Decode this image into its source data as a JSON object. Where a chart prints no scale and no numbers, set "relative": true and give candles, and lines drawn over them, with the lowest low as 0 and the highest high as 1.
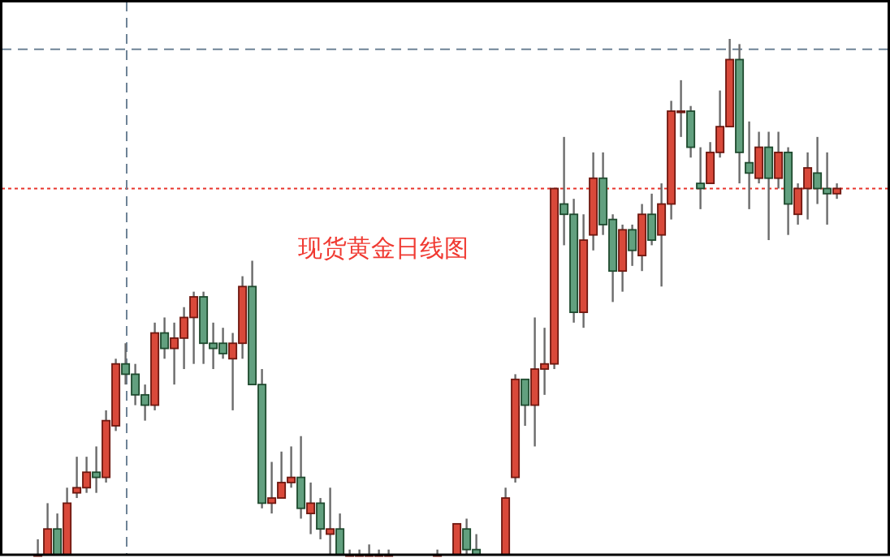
{
  "chart_data": {
    "type": "candlestick",
    "title": "现货黄金日线图",
    "relative": true,
    "categories": [
      null,
      null,
      null,
      null,
      null,
      null,
      null,
      null,
      null,
      null,
      null,
      null,
      null,
      null,
      null,
      null,
      null,
      null,
      null,
      null,
      null,
      null,
      null,
      null,
      null,
      null,
      null,
      null,
      null,
      null,
      null,
      null,
      null,
      null,
      null,
      null,
      null,
      null,
      null,
      null,
      null,
      null,
      null,
      null,
      null,
      null,
      null,
      null,
      null,
      null,
      null,
      null,
      null,
      null,
      null,
      null,
      null,
      null,
      null,
      null,
      null,
      null,
      null,
      null,
      null,
      null,
      null,
      null,
      null,
      null,
      null,
      null,
      null,
      null,
      null,
      null,
      null,
      null,
      null,
      null,
      null,
      null,
      null
    ],
    "ohlc": [
      [
        0,
        0.03,
        0,
        0
      ],
      [
        0,
        0.1,
        0,
        0.05
      ],
      [
        0.05,
        0.08,
        0,
        0
      ],
      [
        0,
        0.13,
        0,
        0.1
      ],
      [
        0.12,
        0.19,
        0.11,
        0.13
      ],
      [
        0.13,
        0.19,
        0.12,
        0.16
      ],
      [
        0.16,
        0.21,
        0.12,
        0.15
      ],
      [
        0.15,
        0.28,
        0.14,
        0.26
      ],
      [
        0.25,
        0.38,
        0.24,
        0.37
      ],
      [
        0.37,
        0.41,
        0.33,
        0.35
      ],
      [
        0.35,
        0.37,
        0.29,
        0.31
      ],
      [
        0.31,
        0.33,
        0.26,
        0.29
      ],
      [
        0.29,
        0.45,
        0.28,
        0.43
      ],
      [
        0.43,
        0.46,
        0.38,
        0.4
      ],
      [
        0.4,
        0.45,
        0.33,
        0.42
      ],
      [
        0.42,
        0.48,
        0.36,
        0.46
      ],
      [
        0.46,
        0.51,
        0.37,
        0.5
      ],
      [
        0.5,
        0.51,
        0.37,
        0.41
      ],
      [
        0.41,
        0.45,
        0.36,
        0.4
      ],
      [
        0.41,
        0.44,
        0.38,
        0.39
      ],
      [
        0.38,
        0.43,
        0.28,
        0.41
      ],
      [
        0.41,
        0.54,
        0.38,
        0.52
      ],
      [
        0.52,
        0.57,
        0.33,
        0.33
      ],
      [
        0.33,
        0.36,
        0.09,
        0.1
      ],
      [
        0.1,
        0.18,
        0.08,
        0.11
      ],
      [
        0.11,
        0.2,
        0.11,
        0.14
      ],
      [
        0.14,
        0.21,
        0.13,
        0.15
      ],
      [
        0.15,
        0.23,
        0.07,
        0.09
      ],
      [
        0.08,
        0.14,
        0.04,
        0.1
      ],
      [
        0.1,
        0.11,
        0.03,
        0.05
      ],
      [
        0.04,
        0.13,
        0,
        0.05
      ],
      [
        0.05,
        0.08,
        0,
        0
      ],
      [
        0,
        0.01,
        0,
        0
      ],
      [
        0,
        0.01,
        0,
        0
      ],
      [
        0,
        0.02,
        0,
        0
      ],
      [
        0,
        0.01,
        0,
        0
      ],
      [
        0,
        0.01,
        0,
        0
      ],
      null,
      null,
      null,
      null,
      [
        0,
        0.01,
        0,
        0
      ],
      null,
      [
        0,
        0.06,
        0,
        0.06
      ],
      [
        0.05,
        0.07,
        0,
        0.01
      ],
      [
        0.01,
        0.04,
        0,
        0
      ],
      null,
      null,
      [
        0,
        0.13,
        0,
        0.11
      ],
      [
        0.15,
        0.35,
        0.14,
        0.34
      ],
      [
        0.34,
        0.34,
        0.25,
        0.29
      ],
      [
        0.29,
        0.46,
        0.21,
        0.36
      ],
      [
        0.36,
        0.44,
        0.31,
        0.37
      ],
      [
        0.37,
        0.71,
        0.36,
        0.71
      ],
      [
        0.68,
        0.81,
        0.6,
        0.66
      ],
      [
        0.66,
        0.69,
        0.45,
        0.47
      ],
      [
        0.47,
        0.66,
        0.44,
        0.61
      ],
      [
        0.62,
        0.78,
        0.59,
        0.73
      ],
      [
        0.73,
        0.78,
        0.62,
        0.64
      ],
      [
        0.65,
        0.66,
        0.49,
        0.55
      ],
      [
        0.55,
        0.64,
        0.51,
        0.63
      ],
      [
        0.63,
        0.64,
        0.56,
        0.59
      ],
      [
        0.58,
        0.68,
        0.55,
        0.66
      ],
      [
        0.66,
        0.7,
        0.6,
        0.61
      ],
      [
        0.62,
        0.72,
        0.52,
        0.68
      ],
      [
        0.68,
        0.88,
        0.65,
        0.86
      ],
      [
        0.86,
        0.92,
        0.81,
        0.86
      ],
      [
        0.86,
        0.87,
        0.77,
        0.79
      ],
      [
        0.72,
        0.79,
        0.67,
        0.71
      ],
      [
        0.72,
        0.8,
        0.72,
        0.78
      ],
      [
        0.78,
        0.9,
        0.77,
        0.83
      ],
      [
        0.83,
        1,
        0.83,
        0.96
      ],
      [
        0.96,
        0.99,
        0.72,
        0.78
      ],
      [
        0.76,
        0.84,
        0.67,
        0.74
      ],
      [
        0.73,
        0.82,
        0.72,
        0.79
      ],
      [
        0.79,
        0.82,
        0.61,
        0.73
      ],
      [
        0.73,
        0.82,
        0.71,
        0.78
      ],
      [
        0.78,
        0.79,
        0.62,
        0.68
      ],
      [
        0.66,
        0.72,
        0.64,
        0.71
      ],
      [
        0.71,
        0.78,
        0.65,
        0.75
      ],
      [
        0.74,
        0.81,
        0.68,
        0.71
      ],
      [
        0.71,
        0.78,
        0.64,
        0.7
      ],
      [
        0.7,
        0.72,
        0.69,
        0.71
      ]
    ],
    "ref_lines": [
      {
        "axis": "y",
        "value": 0.98,
        "color": "#6e8396",
        "line_style": "dashed"
      },
      {
        "axis": "y",
        "value": 0.71,
        "color": "#e8342c",
        "line_style": "dotted"
      }
    ]
  }
}
